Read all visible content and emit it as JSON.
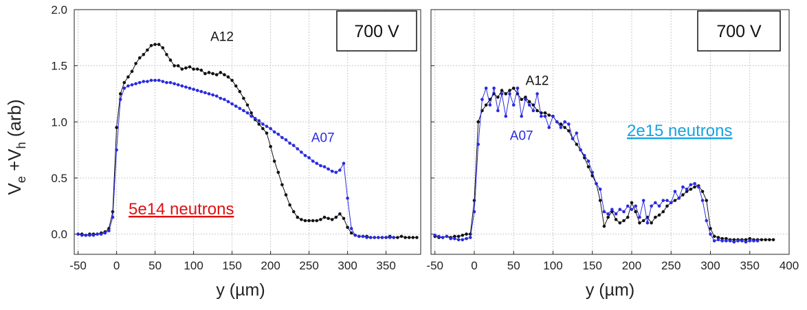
{
  "y_axis_title": {
    "base": "V",
    "e_sub": "e",
    "mid": " +V",
    "h_sub": "h",
    "unit": " (arb)"
  },
  "colors": {
    "A12": "#111111",
    "A07": "#2a2ae0",
    "red_note": "#e01010",
    "blue_note": "#17a3e0"
  },
  "chart_data": [
    {
      "type": "line",
      "panel": "left",
      "xlabel": "y (µm)",
      "ylabel": "Ve +Vh (arb)",
      "xlim": [
        -55,
        395
      ],
      "ylim": [
        -0.18,
        2.0
      ],
      "x_ticks": [
        -50,
        0,
        50,
        100,
        150,
        200,
        250,
        300,
        350
      ],
      "x_tick_labels": [
        "-50",
        "0",
        "50",
        "100",
        "150",
        "200",
        "250",
        "300",
        "350"
      ],
      "y_ticks": [
        0.0,
        0.5,
        1.0,
        1.5,
        2.0
      ],
      "y_tick_labels": [
        "0.0",
        "0.5",
        "1.0",
        "1.5",
        "2.0"
      ],
      "grid": true,
      "voltage_label": "700 V",
      "fluence_label": "5e14 neutrons",
      "fluence_color": "#e01010",
      "series": [
        {
          "name": "A12",
          "color": "#111111",
          "x": [
            -50,
            -45,
            -40,
            -35,
            -30,
            -25,
            -20,
            -15,
            -10,
            -5,
            0,
            5,
            10,
            15,
            20,
            25,
            30,
            35,
            40,
            45,
            50,
            55,
            60,
            65,
            70,
            75,
            80,
            85,
            90,
            95,
            100,
            105,
            110,
            115,
            120,
            125,
            130,
            135,
            140,
            145,
            150,
            155,
            160,
            165,
            170,
            175,
            180,
            185,
            190,
            195,
            200,
            205,
            210,
            215,
            220,
            225,
            230,
            235,
            240,
            245,
            250,
            255,
            260,
            265,
            270,
            275,
            280,
            285,
            290,
            295,
            300,
            305,
            310,
            315,
            320,
            325,
            330,
            335,
            340,
            345,
            350,
            355,
            360,
            365,
            370,
            375,
            380,
            385,
            390
          ],
          "y": [
            0.0,
            0.0,
            -0.01,
            0.0,
            0.0,
            0.0,
            0.01,
            0.02,
            0.05,
            0.2,
            0.95,
            1.25,
            1.35,
            1.4,
            1.45,
            1.52,
            1.57,
            1.6,
            1.64,
            1.68,
            1.69,
            1.69,
            1.66,
            1.6,
            1.55,
            1.5,
            1.5,
            1.47,
            1.48,
            1.49,
            1.47,
            1.47,
            1.46,
            1.43,
            1.44,
            1.43,
            1.42,
            1.44,
            1.42,
            1.4,
            1.37,
            1.32,
            1.27,
            1.21,
            1.15,
            1.08,
            1.02,
            0.98,
            0.94,
            0.9,
            0.78,
            0.65,
            0.55,
            0.44,
            0.35,
            0.26,
            0.2,
            0.15,
            0.13,
            0.12,
            0.12,
            0.12,
            0.12,
            0.13,
            0.15,
            0.14,
            0.13,
            0.15,
            0.18,
            0.14,
            0.06,
            0.01,
            -0.01,
            -0.02,
            -0.02,
            -0.02,
            -0.03,
            -0.03,
            -0.03,
            -0.03,
            -0.03,
            -0.02,
            -0.03,
            -0.03,
            -0.02,
            -0.03,
            -0.03,
            -0.03,
            -0.03
          ]
        },
        {
          "name": "A07",
          "color": "#2a2ae0",
          "x": [
            -50,
            -45,
            -40,
            -35,
            -30,
            -25,
            -20,
            -15,
            -10,
            -5,
            0,
            5,
            10,
            15,
            20,
            25,
            30,
            35,
            40,
            45,
            50,
            55,
            60,
            65,
            70,
            75,
            80,
            85,
            90,
            95,
            100,
            105,
            110,
            115,
            120,
            125,
            130,
            135,
            140,
            145,
            150,
            155,
            160,
            165,
            170,
            175,
            180,
            185,
            190,
            195,
            200,
            205,
            210,
            215,
            220,
            225,
            230,
            235,
            240,
            245,
            250,
            255,
            260,
            265,
            270,
            275,
            280,
            285,
            290,
            295,
            300,
            305,
            310,
            315,
            320,
            325,
            330,
            335,
            340,
            345,
            350,
            355,
            360
          ],
          "y": [
            0.0,
            -0.01,
            -0.01,
            -0.01,
            -0.01,
            0.0,
            0.0,
            0.01,
            0.03,
            0.15,
            0.75,
            1.2,
            1.3,
            1.32,
            1.33,
            1.34,
            1.35,
            1.36,
            1.36,
            1.37,
            1.37,
            1.37,
            1.36,
            1.35,
            1.35,
            1.34,
            1.33,
            1.32,
            1.31,
            1.3,
            1.29,
            1.28,
            1.27,
            1.26,
            1.25,
            1.24,
            1.23,
            1.21,
            1.2,
            1.18,
            1.16,
            1.14,
            1.12,
            1.1,
            1.08,
            1.05,
            1.03,
            1.01,
            0.98,
            0.96,
            0.94,
            0.91,
            0.89,
            0.86,
            0.84,
            0.81,
            0.79,
            0.76,
            0.73,
            0.7,
            0.68,
            0.65,
            0.63,
            0.61,
            0.6,
            0.58,
            0.56,
            0.55,
            0.57,
            0.63,
            0.32,
            0.05,
            -0.01,
            -0.02,
            -0.02,
            -0.03,
            -0.03,
            -0.03,
            -0.03,
            -0.03,
            -0.03,
            -0.03,
            -0.03
          ]
        }
      ],
      "annotations": [
        {
          "text": "A12",
          "x": 137,
          "y": 1.72,
          "series": "A12"
        },
        {
          "text": "A07",
          "x": 268,
          "y": 0.82,
          "series": "A07"
        }
      ]
    },
    {
      "type": "line",
      "panel": "right",
      "xlabel": "y (µm)",
      "ylabel": "",
      "xlim": [
        -55,
        400
      ],
      "ylim": [
        -0.18,
        2.0
      ],
      "x_ticks": [
        -50,
        0,
        50,
        100,
        150,
        200,
        250,
        300,
        350,
        400
      ],
      "x_tick_labels": [
        "-50",
        "0",
        "50",
        "100",
        "150",
        "200",
        "250",
        "300",
        "350",
        "400"
      ],
      "y_ticks": [
        0.0,
        0.5,
        1.0,
        1.5,
        2.0
      ],
      "grid": true,
      "voltage_label": "700 V",
      "fluence_label": "2e15 neutrons",
      "fluence_color": "#17a3e0",
      "series": [
        {
          "name": "A12",
          "color": "#111111",
          "x": [
            -50,
            -45,
            -40,
            -35,
            -30,
            -25,
            -20,
            -15,
            -10,
            -5,
            0,
            5,
            10,
            15,
            20,
            25,
            30,
            35,
            40,
            45,
            50,
            55,
            60,
            65,
            70,
            75,
            80,
            85,
            90,
            95,
            100,
            105,
            110,
            115,
            120,
            125,
            130,
            135,
            140,
            145,
            150,
            155,
            160,
            165,
            170,
            175,
            180,
            185,
            190,
            195,
            200,
            205,
            210,
            215,
            220,
            225,
            230,
            235,
            240,
            245,
            250,
            255,
            260,
            265,
            270,
            275,
            280,
            285,
            290,
            295,
            300,
            305,
            310,
            315,
            320,
            325,
            330,
            335,
            340,
            345,
            350,
            355,
            360,
            365,
            370,
            375,
            380
          ],
          "y": [
            -0.02,
            -0.03,
            -0.03,
            -0.02,
            -0.03,
            -0.02,
            -0.02,
            -0.01,
            0.0,
            0.0,
            0.3,
            1.0,
            1.1,
            1.15,
            1.2,
            1.25,
            1.22,
            1.28,
            1.25,
            1.28,
            1.3,
            1.25,
            1.2,
            1.22,
            1.18,
            1.15,
            1.1,
            1.08,
            1.08,
            1.06,
            1.05,
            1.0,
            0.98,
            0.95,
            0.92,
            0.85,
            0.8,
            0.75,
            0.68,
            0.6,
            0.52,
            0.45,
            0.3,
            0.07,
            0.15,
            0.2,
            0.13,
            0.1,
            0.12,
            0.15,
            0.28,
            0.2,
            0.1,
            0.12,
            0.15,
            0.1,
            0.15,
            0.17,
            0.2,
            0.25,
            0.28,
            0.3,
            0.32,
            0.35,
            0.38,
            0.4,
            0.42,
            0.43,
            0.38,
            0.3,
            0.05,
            -0.02,
            -0.03,
            -0.04,
            -0.04,
            -0.05,
            -0.05,
            -0.05,
            -0.05,
            -0.05,
            -0.04,
            -0.05,
            -0.05,
            -0.05,
            -0.05,
            -0.05,
            -0.05
          ]
        },
        {
          "name": "A07",
          "color": "#2a2ae0",
          "x": [
            -50,
            -45,
            -40,
            -35,
            -30,
            -25,
            -20,
            -15,
            -10,
            -5,
            0,
            5,
            10,
            15,
            20,
            25,
            30,
            35,
            40,
            45,
            50,
            55,
            60,
            65,
            70,
            75,
            80,
            85,
            90,
            95,
            100,
            105,
            110,
            115,
            120,
            125,
            130,
            135,
            140,
            145,
            150,
            155,
            160,
            165,
            170,
            175,
            180,
            185,
            190,
            195,
            200,
            205,
            210,
            215,
            220,
            225,
            230,
            235,
            240,
            245,
            250,
            255,
            260,
            265,
            270,
            275,
            280,
            285,
            290,
            295,
            300,
            305,
            310,
            315,
            320,
            325,
            330,
            335,
            340,
            345,
            350,
            355,
            360
          ],
          "y": [
            -0.01,
            -0.02,
            -0.03,
            -0.02,
            -0.04,
            -0.04,
            -0.05,
            -0.05,
            -0.04,
            -0.03,
            0.2,
            0.8,
            1.2,
            1.3,
            1.15,
            1.3,
            1.1,
            1.25,
            1.05,
            1.25,
            1.15,
            1.3,
            1.05,
            1.2,
            1.15,
            1.1,
            1.25,
            1.05,
            1.05,
            0.95,
            1.05,
            1.0,
            0.95,
            1.0,
            0.98,
            0.85,
            0.9,
            0.75,
            0.7,
            0.65,
            0.55,
            0.45,
            0.4,
            0.2,
            0.18,
            0.22,
            0.18,
            0.22,
            0.2,
            0.25,
            0.22,
            0.25,
            0.15,
            0.3,
            0.1,
            0.25,
            0.28,
            0.25,
            0.3,
            0.3,
            0.28,
            0.38,
            0.32,
            0.42,
            0.4,
            0.44,
            0.45,
            0.42,
            0.3,
            0.12,
            0.0,
            -0.06,
            -0.05,
            -0.06,
            -0.06,
            -0.06,
            -0.07,
            -0.06,
            -0.06,
            -0.07,
            -0.06,
            -0.06,
            -0.06
          ]
        }
      ],
      "annotations": [
        {
          "text": "A12",
          "x": 80,
          "y": 1.33,
          "series": "A12"
        },
        {
          "text": "A07",
          "x": 60,
          "y": 0.84,
          "series": "A07"
        }
      ]
    }
  ]
}
